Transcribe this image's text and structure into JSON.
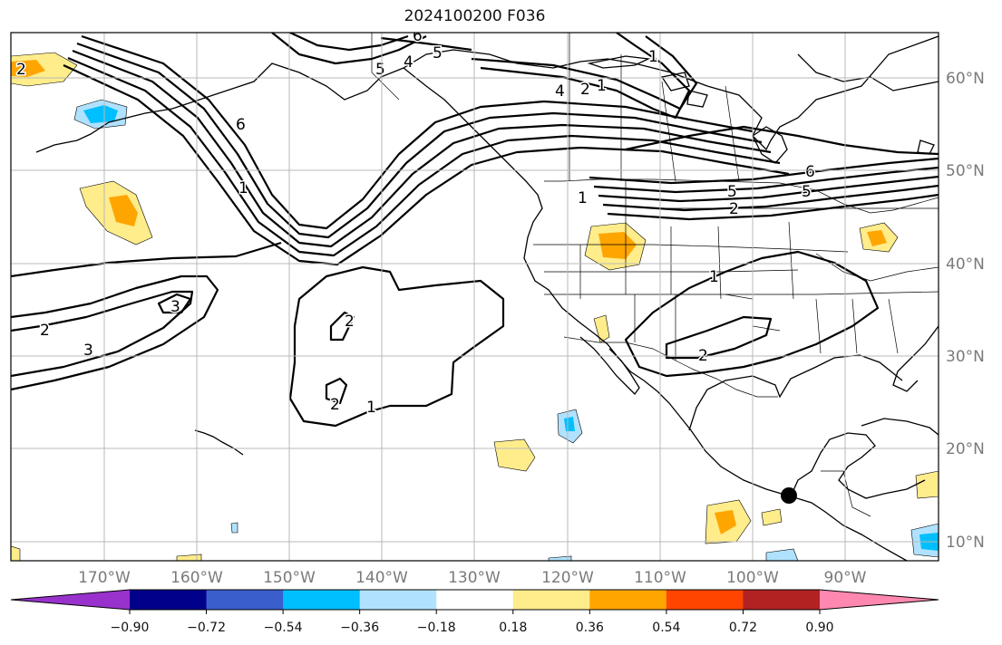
{
  "title": "2024100200 F036",
  "longitude_labels": [
    "170°W",
    "160°W",
    "150°W",
    "140°W",
    "130°W",
    "120°W",
    "110°W",
    "100°W",
    "90°W"
  ],
  "latitude_labels": [
    "60°N",
    "50°N",
    "40°N",
    "30°N",
    "20°N",
    "10°N"
  ],
  "colorbar": {
    "colors": [
      "#9932cc",
      "#00008b",
      "#3a5fcd",
      "#00bfff",
      "#b0e2ff",
      "#ffffff",
      "#ffec8b",
      "#ffa500",
      "#ff4500",
      "#b22222",
      "#ff88b0"
    ],
    "labels": [
      "−0.90",
      "−0.72",
      "−0.54",
      "−0.36",
      "−0.18",
      "0.18",
      "0.36",
      "0.54",
      "0.72",
      "0.90"
    ]
  },
  "contour_labels": [
    "6",
    "5",
    "4",
    "5",
    "2",
    "1",
    "2",
    "6",
    "4",
    "1",
    "6",
    "5",
    "1",
    "5",
    "2",
    "1",
    "2",
    "3",
    "3",
    "2",
    "2",
    "1",
    "2",
    "1"
  ],
  "colors": {
    "shade_light_yellow": "#ffec8b",
    "shade_orange": "#ffa500",
    "shade_light_blue": "#b0e2ff",
    "shade_blue": "#00bfff"
  }
}
